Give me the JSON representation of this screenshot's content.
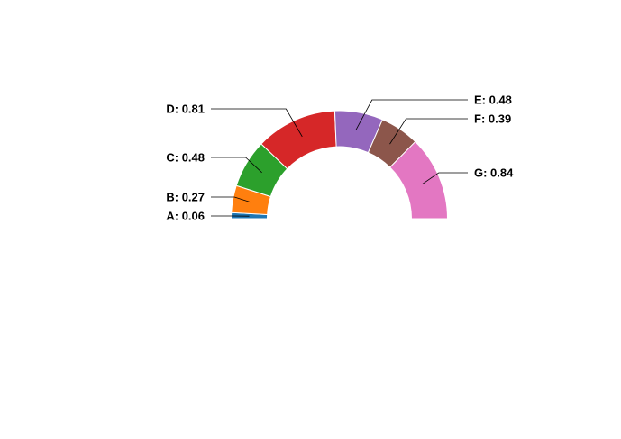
{
  "chart_data": {
    "type": "pie",
    "variant": "half-donut",
    "title": "",
    "categories": [
      "A",
      "B",
      "C",
      "D",
      "E",
      "F",
      "G"
    ],
    "values": [
      0.06,
      0.27,
      0.48,
      0.81,
      0.48,
      0.39,
      0.84
    ],
    "labels": [
      "A: 0.06",
      "B: 0.27",
      "C: 0.48",
      "D: 0.81",
      "E: 0.48",
      "F: 0.39",
      "G: 0.84"
    ],
    "colors": [
      "#1f77b4",
      "#ff7f0e",
      "#2ca02c",
      "#d62728",
      "#9467bd",
      "#8c564b",
      "#e377c2"
    ],
    "legend": "none"
  }
}
